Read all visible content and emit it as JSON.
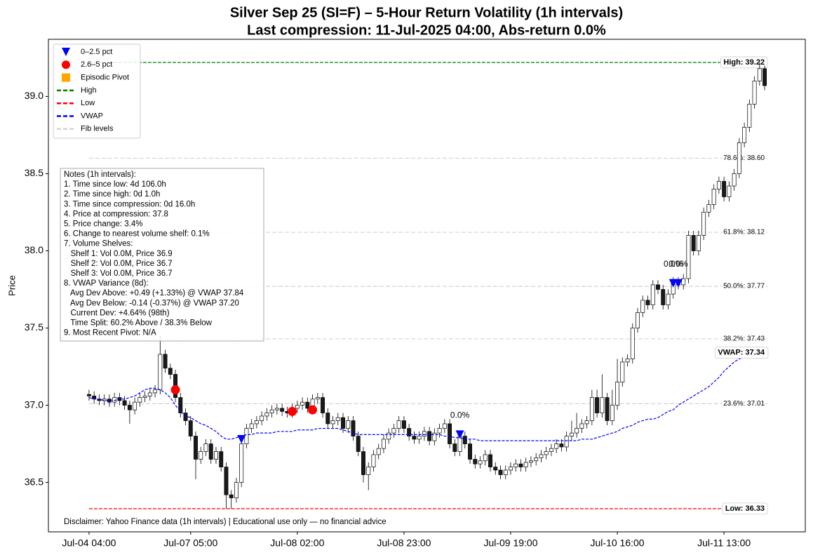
{
  "chart_data": {
    "type": "candlestick",
    "title": "Silver Sep 25 (SI=F) – 5-Hour Return Volatility (1h intervals)",
    "subtitle": "Last compression: 11-Jul-2025 04:00, Abs-return 0.0%",
    "ylabel": "Price",
    "xlim": [
      -8,
      141
    ],
    "ylim": [
      36.18,
      39.37
    ],
    "xticks": [
      {
        "value": 0,
        "label": "Jul-04 04:00"
      },
      {
        "value": 20,
        "label": "Jul-07 05:00"
      },
      {
        "value": 41,
        "label": "Jul-08 02:00"
      },
      {
        "value": 62,
        "label": "Jul-08 23:00"
      },
      {
        "value": 83,
        "label": "Jul-09 19:00"
      },
      {
        "value": 104,
        "label": "Jul-10 16:00"
      },
      {
        "value": 125,
        "label": "Jul-11 13:00"
      }
    ],
    "yticks": [
      36.5,
      {
        "value": 37,
        "label": "37.0"
      },
      37.5,
      {
        "value": 38,
        "label": "38.0"
      },
      38.5,
      {
        "value": 39,
        "label": "39.0"
      }
    ],
    "legend": "upper left",
    "open": [
      37.07,
      37.06,
      37.04,
      37.03,
      37.04,
      37.02,
      37.05,
      37.03,
      37.0,
      36.97,
      37.02,
      37.05,
      37.06,
      37.08,
      37.1,
      37.33,
      37.24,
      37.2,
      37.05,
      36.95,
      36.9,
      36.8,
      36.65,
      36.7,
      36.75,
      36.65,
      36.7,
      36.6,
      36.42,
      36.4,
      36.5,
      36.75,
      36.85,
      36.88,
      36.9,
      36.93,
      36.95,
      36.97,
      36.98,
      36.96,
      36.95,
      36.98,
      37.0,
      37.02,
      36.98,
      37.04,
      37.05,
      36.95,
      36.88,
      36.9,
      36.92,
      36.85,
      36.9,
      36.8,
      36.7,
      36.55,
      36.6,
      36.68,
      36.72,
      36.78,
      36.82,
      36.85,
      36.9,
      36.85,
      36.8,
      36.78,
      36.8,
      36.83,
      36.77,
      36.82,
      36.85,
      36.88,
      36.75,
      36.7,
      36.8,
      36.75,
      36.65,
      36.62,
      36.64,
      36.68,
      36.6,
      36.58,
      36.55,
      36.58,
      36.6,
      36.62,
      36.6,
      36.63,
      36.64,
      36.66,
      36.68,
      36.7,
      36.72,
      36.75,
      36.73,
      36.8,
      36.82,
      36.85,
      36.88,
      36.9,
      37.05,
      36.95,
      37.05,
      36.9,
      37.0,
      37.15,
      37.28,
      37.3,
      37.5,
      37.6,
      37.68,
      37.65,
      37.78,
      37.75,
      37.65,
      37.72,
      37.8,
      37.78,
      37.82,
      38.1,
      38.0,
      38.1,
      38.25,
      38.3,
      38.4,
      38.45,
      38.35,
      38.42,
      38.5,
      38.7,
      38.8,
      38.95,
      39.1,
      39.18
    ],
    "high": [
      37.1,
      37.09,
      37.07,
      37.07,
      37.07,
      37.08,
      37.08,
      37.06,
      37.03,
      37.05,
      37.08,
      37.09,
      37.11,
      37.13,
      37.45,
      37.36,
      37.27,
      37.23,
      37.08,
      36.98,
      36.93,
      36.83,
      36.73,
      36.78,
      36.78,
      36.73,
      36.73,
      36.63,
      36.45,
      36.53,
      36.78,
      36.88,
      36.91,
      36.93,
      36.96,
      36.98,
      37.0,
      37.01,
      37.01,
      36.99,
      37.01,
      37.03,
      37.05,
      37.05,
      37.07,
      37.08,
      37.08,
      36.98,
      36.93,
      36.95,
      36.95,
      36.93,
      36.93,
      36.83,
      36.73,
      36.63,
      36.71,
      36.75,
      36.81,
      36.85,
      36.88,
      36.93,
      36.93,
      36.88,
      36.83,
      36.83,
      36.86,
      36.86,
      36.85,
      36.88,
      36.91,
      36.91,
      36.78,
      36.83,
      36.83,
      36.78,
      36.68,
      36.67,
      36.71,
      36.71,
      36.63,
      36.61,
      36.61,
      36.63,
      36.65,
      36.65,
      36.66,
      36.67,
      36.69,
      36.71,
      36.73,
      36.75,
      36.78,
      36.78,
      36.83,
      36.9,
      36.95,
      36.91,
      36.93,
      37.1,
      37.1,
      37.2,
      37.08,
      37.1,
      37.3,
      37.31,
      37.33,
      37.53,
      37.63,
      37.71,
      37.71,
      37.81,
      37.81,
      37.78,
      37.75,
      37.83,
      37.83,
      37.85,
      38.13,
      38.13,
      38.13,
      38.28,
      38.33,
      38.43,
      38.48,
      38.48,
      38.45,
      38.53,
      38.73,
      38.83,
      38.98,
      39.13,
      39.22,
      39.2
    ],
    "low": [
      37.03,
      37.01,
      37.0,
      37.0,
      36.99,
      36.99,
      37.0,
      36.97,
      36.88,
      36.94,
      36.99,
      37.02,
      37.03,
      37.05,
      37.07,
      37.21,
      37.17,
      37.02,
      36.92,
      36.87,
      36.77,
      36.52,
      36.62,
      36.67,
      36.62,
      36.62,
      36.57,
      36.33,
      36.33,
      36.37,
      36.47,
      36.72,
      36.82,
      36.85,
      36.87,
      36.9,
      36.92,
      36.94,
      36.93,
      36.92,
      36.92,
      36.95,
      36.97,
      36.95,
      36.95,
      37.01,
      36.92,
      36.85,
      36.85,
      36.87,
      36.82,
      36.82,
      36.77,
      36.67,
      36.5,
      36.45,
      36.57,
      36.65,
      36.69,
      36.75,
      36.79,
      36.82,
      36.82,
      36.77,
      36.75,
      36.75,
      36.77,
      36.74,
      36.74,
      36.79,
      36.82,
      36.72,
      36.67,
      36.67,
      36.72,
      36.62,
      36.59,
      36.59,
      36.61,
      36.57,
      36.55,
      36.52,
      36.52,
      36.55,
      36.57,
      36.57,
      36.57,
      36.6,
      36.61,
      36.63,
      36.65,
      36.67,
      36.69,
      36.7,
      36.7,
      36.77,
      36.79,
      36.82,
      36.85,
      36.87,
      36.92,
      36.92,
      36.87,
      36.87,
      36.97,
      37.12,
      37.25,
      37.27,
      37.47,
      37.57,
      37.62,
      37.62,
      37.72,
      37.62,
      37.62,
      37.69,
      37.75,
      37.75,
      37.79,
      37.97,
      37.97,
      38.07,
      38.22,
      38.27,
      38.37,
      38.32,
      38.32,
      38.39,
      38.47,
      38.67,
      38.77,
      38.92,
      39.07,
      39.04
    ],
    "close": [
      37.06,
      37.04,
      37.03,
      37.04,
      37.02,
      37.05,
      37.03,
      37.0,
      36.97,
      37.02,
      37.05,
      37.06,
      37.08,
      37.1,
      37.33,
      37.24,
      37.2,
      37.05,
      36.95,
      36.9,
      36.8,
      36.65,
      36.7,
      36.75,
      36.65,
      36.7,
      36.6,
      36.42,
      36.4,
      36.5,
      36.75,
      36.85,
      36.88,
      36.9,
      36.93,
      36.95,
      36.97,
      36.98,
      36.96,
      36.95,
      36.98,
      37.0,
      37.02,
      36.98,
      37.04,
      37.05,
      36.95,
      36.88,
      36.9,
      36.92,
      36.85,
      36.9,
      36.8,
      36.7,
      36.55,
      36.6,
      36.68,
      36.72,
      36.78,
      36.82,
      36.85,
      36.9,
      36.85,
      36.8,
      36.78,
      36.8,
      36.83,
      36.77,
      36.82,
      36.85,
      36.88,
      36.75,
      36.7,
      36.8,
      36.75,
      36.65,
      36.62,
      36.64,
      36.68,
      36.6,
      36.58,
      36.55,
      36.58,
      36.6,
      36.62,
      36.6,
      36.63,
      36.64,
      36.66,
      36.68,
      36.7,
      36.72,
      36.75,
      36.73,
      36.8,
      36.82,
      36.85,
      36.88,
      36.9,
      37.05,
      36.95,
      37.05,
      36.9,
      37.0,
      37.15,
      37.28,
      37.3,
      37.5,
      37.6,
      37.68,
      37.65,
      37.78,
      37.75,
      37.65,
      37.72,
      37.8,
      37.78,
      37.82,
      38.1,
      38.0,
      38.1,
      38.25,
      38.3,
      38.4,
      38.45,
      38.35,
      38.42,
      38.5,
      38.7,
      38.8,
      38.95,
      39.1,
      39.18,
      39.07
    ],
    "markers": [
      {
        "name": "0–2.5 pct",
        "color": "#0000ff",
        "shape": "triangle",
        "x": [
          30,
          73,
          115,
          116
        ],
        "values": [
          36.78,
          36.81,
          37.79,
          37.79
        ],
        "value_labels": [
          null,
          "0.0%",
          "0.0%",
          "0.0%"
        ]
      },
      {
        "name": "2.6–5 pct",
        "color": "#ff0000",
        "shape": "circle",
        "x": [
          17,
          40,
          44
        ],
        "values": [
          37.1,
          36.96,
          36.97
        ]
      },
      {
        "name": "Episodic Pivot",
        "color": "#ffa500",
        "shape": "square",
        "x": [],
        "values": []
      }
    ],
    "high_line": {
      "name": "High",
      "color": "#008000",
      "value": 39.22,
      "label": "High: 39.22"
    },
    "low_line": {
      "name": "Low",
      "color": "#ff0000",
      "value": 36.33,
      "label": "Low: 36.33"
    },
    "vwap": {
      "name": "VWAP",
      "color": "#0000ff",
      "label": "VWAP: 37.34",
      "values": [
        37.05,
        37.04,
        37.04,
        37.03,
        37.03,
        37.03,
        37.04,
        37.04,
        37.05,
        37.06,
        37.08,
        37.1,
        37.11,
        37.11,
        37.1,
        37.08,
        37.05,
        37.0,
        36.96,
        36.93,
        36.92,
        36.9,
        36.88,
        36.87,
        36.85,
        36.83,
        36.8,
        36.78,
        36.78,
        36.79,
        36.8,
        36.81,
        36.81,
        36.82,
        36.82,
        36.82,
        36.82,
        36.83,
        36.83,
        36.83,
        36.83,
        36.84,
        36.84,
        36.84,
        36.84,
        36.85,
        36.85,
        36.85,
        36.85,
        36.85,
        36.84,
        36.83,
        36.82,
        36.81,
        36.81,
        36.81,
        36.81,
        36.81,
        36.81,
        36.81,
        36.81,
        36.81,
        36.81,
        36.81,
        36.81,
        36.81,
        36.81,
        36.81,
        36.81,
        36.81,
        36.8,
        36.8,
        36.79,
        36.79,
        36.78,
        36.78,
        36.78,
        36.77,
        36.77,
        36.77,
        36.77,
        36.77,
        36.77,
        36.77,
        36.77,
        36.77,
        36.77,
        36.77,
        36.77,
        36.77,
        36.77,
        36.77,
        36.77,
        36.77,
        36.77,
        36.77,
        36.77,
        36.78,
        36.78,
        36.78,
        36.79,
        36.8,
        36.81,
        36.82,
        36.83,
        36.85,
        36.86,
        36.87,
        36.89,
        36.9,
        36.91,
        36.91,
        36.92,
        36.94,
        36.96,
        36.97,
        37.0,
        37.02,
        37.04,
        37.06,
        37.08,
        37.1,
        37.12,
        37.15,
        37.18,
        37.22,
        37.25,
        37.28,
        37.3,
        37.31,
        37.32,
        37.33,
        37.33,
        37.34
      ]
    },
    "fib": {
      "name": "Fib levels",
      "color": "#d3d3d3",
      "levels": [
        {
          "value": 38.6,
          "label": "78.6%: 38.60"
        },
        {
          "value": 38.12,
          "label": "61.8%: 38.12"
        },
        {
          "value": 37.77,
          "label": "50.0%: 37.77"
        },
        {
          "value": 37.43,
          "label": "38.2%: 37.43"
        },
        {
          "value": 37.01,
          "label": "23.6%: 37.01"
        }
      ]
    },
    "notes": [
      "Notes (1h intervals):",
      "1. Time since low: 4d 106.0h",
      "2. Time since high: 0d 1.0h",
      "3. Time since compression: 0d 16.0h",
      "4. Price at compression: 37.8",
      "5. Price change: 3.4%",
      "6. Change to nearest volume shelf: 0.1%",
      "7. Volume Shelves:",
      "   Shelf 1: Vol 0.0M, Price 36.9",
      "   Shelf 2: Vol 0.0M, Price 36.7",
      "   Shelf 3: Vol 0.0M, Price 36.7",
      "8. VWAP Variance (8d):",
      "   Avg Dev Above: +0.49 (+1.33%) @ VWAP 37.84",
      "   Avg Dev Below: -0.14 (-0.37%) @ VWAP 37.20",
      "   Current Dev: +4.64% (98th)",
      "   Time Split: 60.2% Above / 38.3% Below",
      "9. Most Recent Pivot: N/A"
    ],
    "disclaimer": "Disclaimer: Yahoo Finance data (1h intervals) | Educational use only — no financial advice"
  }
}
